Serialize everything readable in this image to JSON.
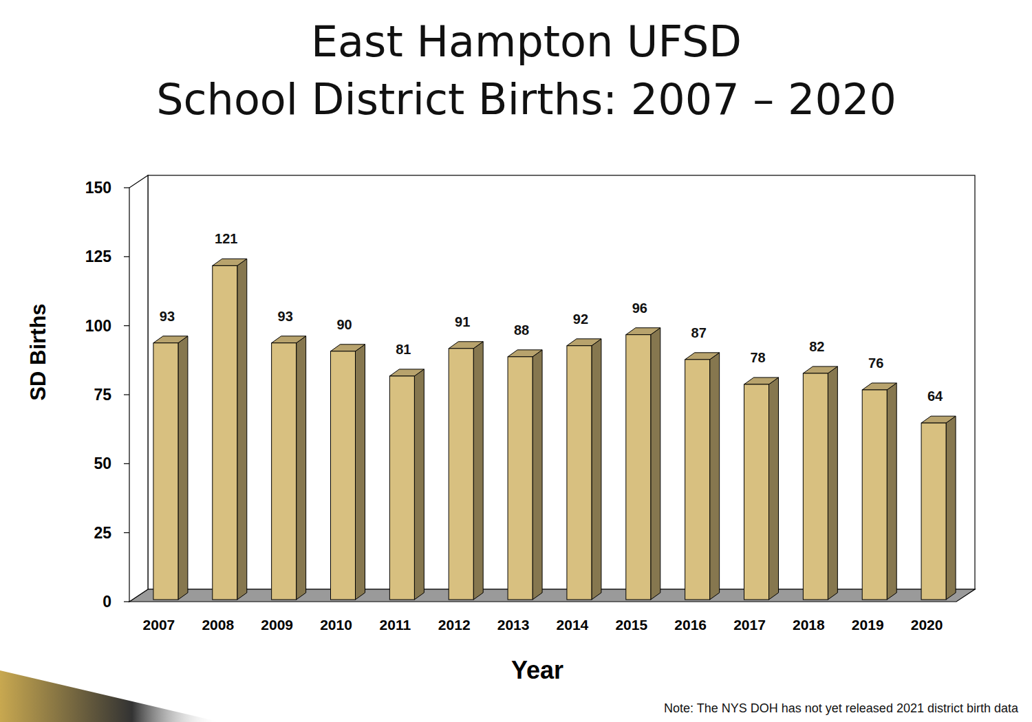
{
  "chart_data": {
    "type": "bar",
    "title": "East Hampton UFSD",
    "subtitle": "School District Births: 2007 – 2020",
    "x_label": "Year",
    "y_label": "SD Births",
    "annotations": [
      "Note: The NYS DOH has not yet released 2021 district birth data"
    ],
    "categories": [
      "2007",
      "2008",
      "2009",
      "2010",
      "2011",
      "2012",
      "2013",
      "2014",
      "2015",
      "2016",
      "2017",
      "2018",
      "2019",
      "2020"
    ],
    "values": [
      93,
      121,
      93,
      90,
      81,
      91,
      88,
      92,
      96,
      87,
      78,
      82,
      76,
      64
    ],
    "color": "#d8c080",
    "ylim": [
      0,
      150
    ],
    "yticks": [
      0,
      25,
      50,
      75,
      100,
      125,
      150
    ],
    "grid": false,
    "data_labels": true
  }
}
